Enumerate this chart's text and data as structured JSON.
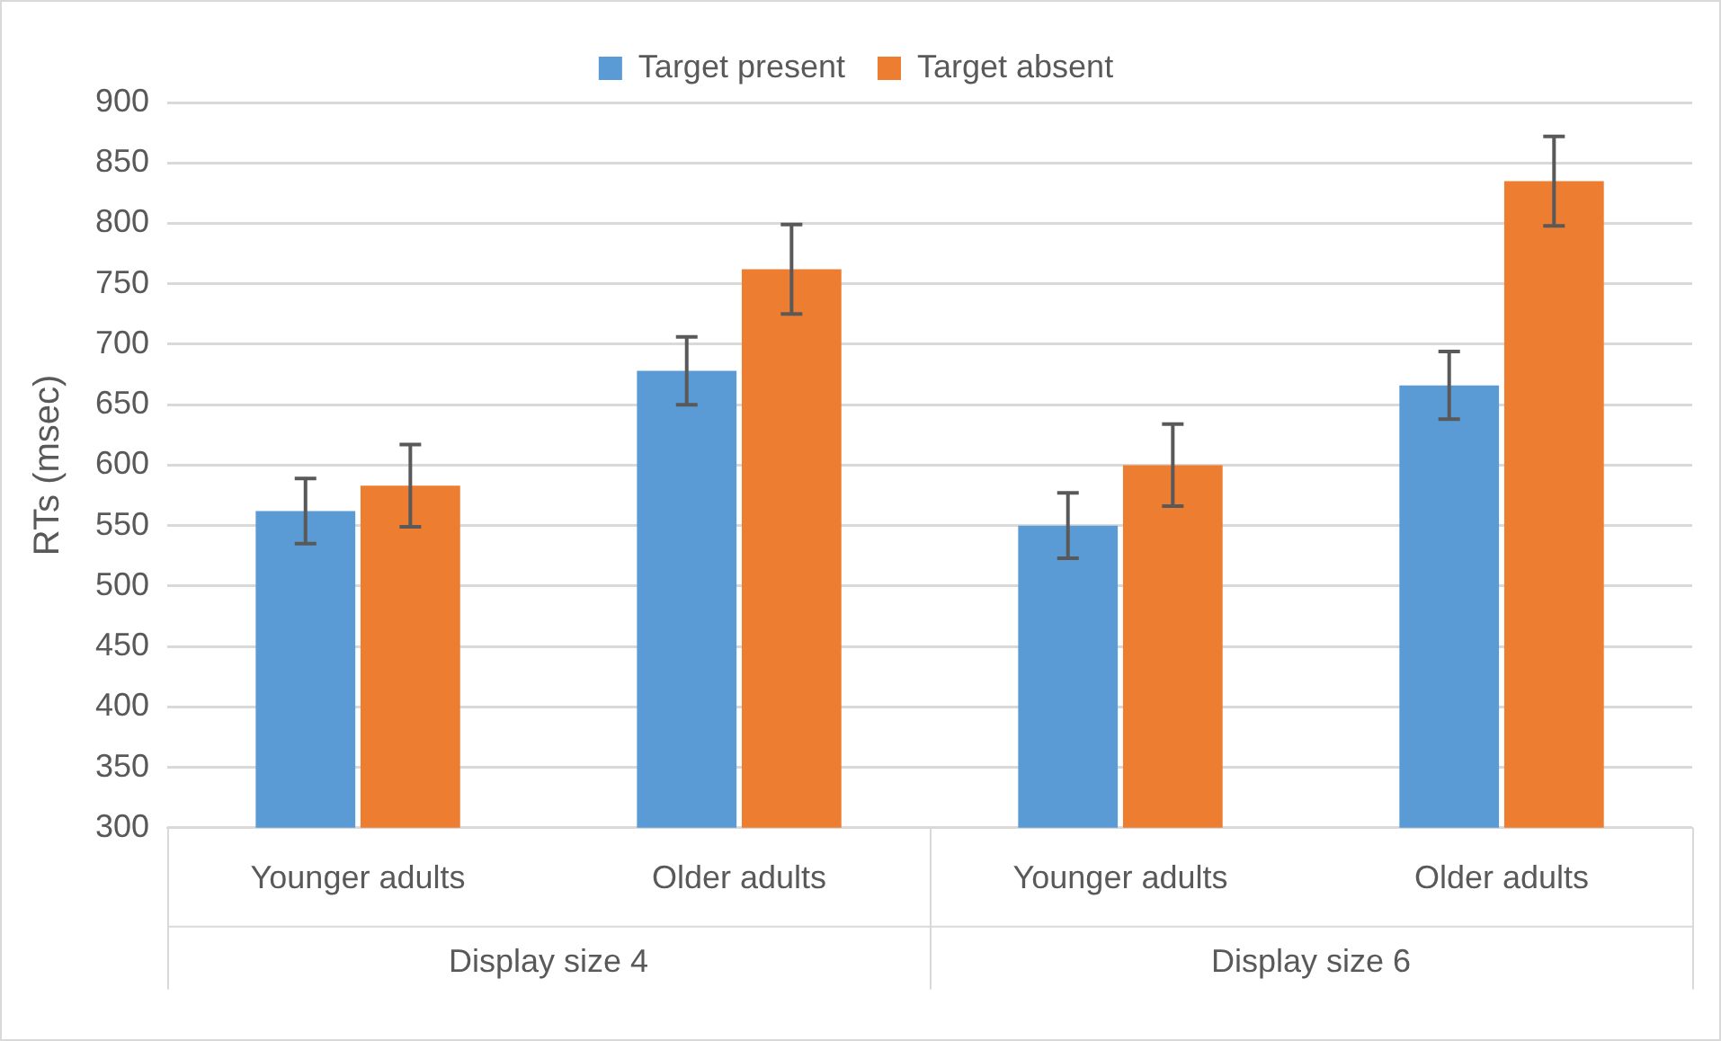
{
  "chart_data": {
    "type": "bar",
    "ylabel": "RTs (msec)",
    "categories": [
      "Younger adults",
      "Older adults",
      "Younger adults",
      "Older adults"
    ],
    "series": [
      {
        "name": "Target present",
        "color": "#5b9bd5",
        "values": [
          562,
          678,
          550,
          666
        ],
        "errors": [
          27,
          28,
          27,
          28
        ]
      },
      {
        "name": "Target absent",
        "color": "#ed7d31",
        "values": [
          583,
          762,
          600,
          835
        ],
        "errors": [
          34,
          37,
          34,
          37
        ]
      }
    ],
    "annotations": [
      "Display size 4",
      "Display size 6"
    ],
    "ylim": [
      300,
      900
    ],
    "yticks": [
      300,
      350,
      400,
      450,
      500,
      550,
      600,
      650,
      700,
      750,
      800,
      850,
      900
    ],
    "grid": "y",
    "legend": "top"
  }
}
